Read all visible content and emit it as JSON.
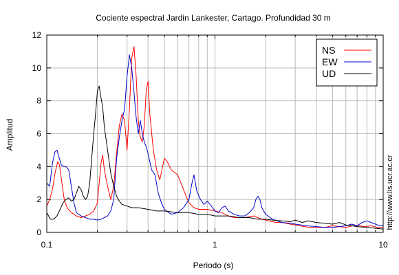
{
  "chart_data": {
    "type": "line",
    "title": "Cociente espectral Jardin Lankester, Cartago. Profundidad 30 m",
    "xlabel": "Periodo (s)",
    "ylabel": "Amplitud",
    "xscale": "log",
    "xlim": [
      0.1,
      10
    ],
    "ylim": [
      0,
      12
    ],
    "xticks": [
      0.1,
      1,
      10
    ],
    "xtick_labels": [
      "0.1",
      "1",
      "10"
    ],
    "yticks": [
      0,
      2,
      4,
      6,
      8,
      10,
      12
    ],
    "grid": true,
    "legend_position": "top-right",
    "watermark": "http://www.lis.ucr.ac.cr",
    "series": [
      {
        "name": "NS",
        "color": "#ff0000",
        "points": [
          [
            0.1,
            1.6
          ],
          [
            0.104,
            2.0
          ],
          [
            0.108,
            2.6
          ],
          [
            0.112,
            3.6
          ],
          [
            0.116,
            4.3
          ],
          [
            0.119,
            4.1
          ],
          [
            0.123,
            3.0
          ],
          [
            0.127,
            2.0
          ],
          [
            0.132,
            1.5
          ],
          [
            0.14,
            1.2
          ],
          [
            0.15,
            1.0
          ],
          [
            0.16,
            0.9
          ],
          [
            0.17,
            1.0
          ],
          [
            0.18,
            1.1
          ],
          [
            0.19,
            1.3
          ],
          [
            0.2,
            1.8
          ],
          [
            0.205,
            3.0
          ],
          [
            0.21,
            4.2
          ],
          [
            0.215,
            4.7
          ],
          [
            0.22,
            3.8
          ],
          [
            0.23,
            2.8
          ],
          [
            0.24,
            2.0
          ],
          [
            0.25,
            2.8
          ],
          [
            0.26,
            4.8
          ],
          [
            0.27,
            6.5
          ],
          [
            0.28,
            7.2
          ],
          [
            0.29,
            6.8
          ],
          [
            0.3,
            5.0
          ],
          [
            0.31,
            7.5
          ],
          [
            0.32,
            10.6
          ],
          [
            0.33,
            11.3
          ],
          [
            0.34,
            9.5
          ],
          [
            0.35,
            6.8
          ],
          [
            0.36,
            5.8
          ],
          [
            0.37,
            5.5
          ],
          [
            0.38,
            6.5
          ],
          [
            0.39,
            8.6
          ],
          [
            0.4,
            9.2
          ],
          [
            0.41,
            7.2
          ],
          [
            0.43,
            5.0
          ],
          [
            0.45,
            3.8
          ],
          [
            0.47,
            3.2
          ],
          [
            0.5,
            4.5
          ],
          [
            0.52,
            4.3
          ],
          [
            0.55,
            3.8
          ],
          [
            0.6,
            3.5
          ],
          [
            0.65,
            2.6
          ],
          [
            0.7,
            1.8
          ],
          [
            0.75,
            1.5
          ],
          [
            0.8,
            1.4
          ],
          [
            0.9,
            1.4
          ],
          [
            1.0,
            1.3
          ],
          [
            1.1,
            1.2
          ],
          [
            1.2,
            1.0
          ],
          [
            1.3,
            0.9
          ],
          [
            1.5,
            0.9
          ],
          [
            1.7,
            1.0
          ],
          [
            1.9,
            0.8
          ],
          [
            2.1,
            0.7
          ],
          [
            2.3,
            0.6
          ],
          [
            2.5,
            0.6
          ],
          [
            2.8,
            0.5
          ],
          [
            3.2,
            0.4
          ],
          [
            3.6,
            0.3
          ],
          [
            4.0,
            0.3
          ],
          [
            4.5,
            0.3
          ],
          [
            5.0,
            0.4
          ],
          [
            5.5,
            0.35
          ],
          [
            6.0,
            0.3
          ],
          [
            6.6,
            0.4
          ],
          [
            7.2,
            0.4
          ],
          [
            7.8,
            0.35
          ],
          [
            8.5,
            0.4
          ],
          [
            9.2,
            0.3
          ],
          [
            10.0,
            0.3
          ]
        ]
      },
      {
        "name": "EW",
        "color": "#0000cc",
        "points": [
          [
            0.1,
            3.0
          ],
          [
            0.104,
            2.8
          ],
          [
            0.108,
            4.2
          ],
          [
            0.112,
            4.9
          ],
          [
            0.115,
            5.0
          ],
          [
            0.118,
            4.6
          ],
          [
            0.122,
            4.1
          ],
          [
            0.126,
            4.0
          ],
          [
            0.13,
            4.0
          ],
          [
            0.135,
            3.8
          ],
          [
            0.14,
            2.8
          ],
          [
            0.145,
            1.8
          ],
          [
            0.15,
            1.2
          ],
          [
            0.16,
            1.0
          ],
          [
            0.17,
            0.9
          ],
          [
            0.18,
            0.8
          ],
          [
            0.19,
            0.8
          ],
          [
            0.2,
            0.75
          ],
          [
            0.21,
            0.8
          ],
          [
            0.22,
            0.9
          ],
          [
            0.23,
            1.0
          ],
          [
            0.24,
            1.3
          ],
          [
            0.25,
            2.0
          ],
          [
            0.26,
            4.5
          ],
          [
            0.27,
            5.8
          ],
          [
            0.28,
            6.8
          ],
          [
            0.29,
            7.5
          ],
          [
            0.3,
            9.5
          ],
          [
            0.31,
            10.8
          ],
          [
            0.32,
            10.0
          ],
          [
            0.33,
            8.5
          ],
          [
            0.34,
            7.0
          ],
          [
            0.35,
            6.0
          ],
          [
            0.36,
            6.8
          ],
          [
            0.37,
            6.0
          ],
          [
            0.38,
            5.5
          ],
          [
            0.39,
            5.2
          ],
          [
            0.4,
            4.8
          ],
          [
            0.42,
            3.8
          ],
          [
            0.44,
            3.5
          ],
          [
            0.46,
            2.4
          ],
          [
            0.48,
            1.8
          ],
          [
            0.5,
            1.4
          ],
          [
            0.55,
            1.1
          ],
          [
            0.6,
            1.2
          ],
          [
            0.65,
            1.5
          ],
          [
            0.7,
            2.0
          ],
          [
            0.73,
            3.0
          ],
          [
            0.75,
            3.5
          ],
          [
            0.78,
            2.5
          ],
          [
            0.82,
            2.0
          ],
          [
            0.86,
            1.7
          ],
          [
            0.9,
            1.9
          ],
          [
            0.95,
            1.6
          ],
          [
            1.0,
            1.3
          ],
          [
            1.05,
            1.2
          ],
          [
            1.1,
            1.5
          ],
          [
            1.15,
            1.6
          ],
          [
            1.2,
            1.3
          ],
          [
            1.3,
            1.1
          ],
          [
            1.4,
            1.0
          ],
          [
            1.5,
            1.0
          ],
          [
            1.6,
            1.2
          ],
          [
            1.7,
            1.5
          ],
          [
            1.75,
            2.0
          ],
          [
            1.8,
            2.2
          ],
          [
            1.85,
            2.0
          ],
          [
            1.9,
            1.5
          ],
          [
            2.0,
            1.1
          ],
          [
            2.2,
            0.8
          ],
          [
            2.5,
            0.6
          ],
          [
            2.8,
            0.55
          ],
          [
            3.0,
            0.5
          ],
          [
            3.5,
            0.4
          ],
          [
            4.0,
            0.35
          ],
          [
            4.5,
            0.3
          ],
          [
            5.0,
            0.3
          ],
          [
            5.5,
            0.35
          ],
          [
            6.0,
            0.4
          ],
          [
            6.5,
            0.5
          ],
          [
            7.0,
            0.4
          ],
          [
            7.5,
            0.6
          ],
          [
            8.0,
            0.7
          ],
          [
            8.5,
            0.6
          ],
          [
            9.0,
            0.5
          ],
          [
            9.5,
            0.4
          ],
          [
            10.0,
            0.4
          ]
        ]
      },
      {
        "name": "UD",
        "color": "#000000",
        "points": [
          [
            0.1,
            1.2
          ],
          [
            0.105,
            0.8
          ],
          [
            0.11,
            0.8
          ],
          [
            0.115,
            1.0
          ],
          [
            0.12,
            1.4
          ],
          [
            0.125,
            1.8
          ],
          [
            0.13,
            2.0
          ],
          [
            0.135,
            2.1
          ],
          [
            0.14,
            1.9
          ],
          [
            0.145,
            2.0
          ],
          [
            0.15,
            2.4
          ],
          [
            0.155,
            2.8
          ],
          [
            0.16,
            2.6
          ],
          [
            0.165,
            2.2
          ],
          [
            0.17,
            2.0
          ],
          [
            0.175,
            2.2
          ],
          [
            0.18,
            3.0
          ],
          [
            0.185,
            4.5
          ],
          [
            0.19,
            6.0
          ],
          [
            0.195,
            7.2
          ],
          [
            0.2,
            8.6
          ],
          [
            0.205,
            8.9
          ],
          [
            0.21,
            8.2
          ],
          [
            0.215,
            7.6
          ],
          [
            0.22,
            6.4
          ],
          [
            0.23,
            5.0
          ],
          [
            0.24,
            3.6
          ],
          [
            0.25,
            2.8
          ],
          [
            0.26,
            2.2
          ],
          [
            0.27,
            1.9
          ],
          [
            0.28,
            1.7
          ],
          [
            0.3,
            1.6
          ],
          [
            0.32,
            1.5
          ],
          [
            0.35,
            1.5
          ],
          [
            0.4,
            1.4
          ],
          [
            0.45,
            1.3
          ],
          [
            0.5,
            1.3
          ],
          [
            0.6,
            1.2
          ],
          [
            0.7,
            1.2
          ],
          [
            0.8,
            1.1
          ],
          [
            0.9,
            1.1
          ],
          [
            1.0,
            1.0
          ],
          [
            1.2,
            1.0
          ],
          [
            1.4,
            0.9
          ],
          [
            1.6,
            0.9
          ],
          [
            1.8,
            0.8
          ],
          [
            2.0,
            0.8
          ],
          [
            2.2,
            0.75
          ],
          [
            2.5,
            0.7
          ],
          [
            2.8,
            0.65
          ],
          [
            3.0,
            0.75
          ],
          [
            3.3,
            0.6
          ],
          [
            3.6,
            0.7
          ],
          [
            4.0,
            0.6
          ],
          [
            4.5,
            0.55
          ],
          [
            5.0,
            0.5
          ],
          [
            5.5,
            0.6
          ],
          [
            6.0,
            0.45
          ],
          [
            6.5,
            0.4
          ],
          [
            7.0,
            0.35
          ],
          [
            8.0,
            0.3
          ],
          [
            9.0,
            0.25
          ],
          [
            10.0,
            0.2
          ]
        ]
      }
    ]
  }
}
